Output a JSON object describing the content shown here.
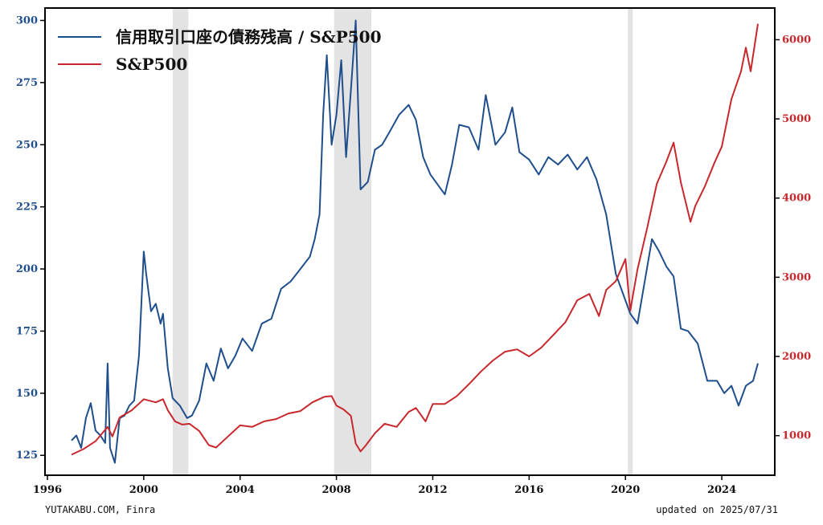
{
  "chart_data": {
    "type": "line",
    "title": "",
    "xlabel": "",
    "x_ticks": [
      "1996",
      "2000",
      "2004",
      "2008",
      "2012",
      "2016",
      "2020",
      "2024"
    ],
    "xlim": [
      1995.9,
      2026.2
    ],
    "y_left": {
      "ylim": [
        117,
        305
      ],
      "ticks": [
        125,
        150,
        175,
        200,
        225,
        250,
        275,
        300
      ],
      "color": "#1f4e8c"
    },
    "y_right": {
      "ylim": [
        500,
        6400
      ],
      "ticks": [
        1000,
        2000,
        3000,
        4000,
        5000,
        6000
      ],
      "color": "#c8282d"
    },
    "grid": false,
    "legend_position": "top-left",
    "recessions": [
      [
        2001.2,
        2001.85
      ],
      [
        2007.9,
        2009.45
      ],
      [
        2020.1,
        2020.3
      ]
    ],
    "series": [
      {
        "name": "信用取引口座の債務残高 / S&P500",
        "axis": "left",
        "color": "#1f4e8c",
        "x": [
          1997.0,
          1997.2,
          1997.4,
          1997.6,
          1997.8,
          1998.0,
          1998.2,
          1998.4,
          1998.5,
          1998.6,
          1998.8,
          1999.0,
          1999.2,
          1999.4,
          1999.6,
          1999.8,
          2000.0,
          2000.1,
          2000.3,
          2000.5,
          2000.7,
          2000.8,
          2001.0,
          2001.2,
          2001.5,
          2001.8,
          2002.0,
          2002.3,
          2002.6,
          2002.9,
          2003.2,
          2003.5,
          2003.8,
          2004.1,
          2004.5,
          2004.9,
          2005.3,
          2005.7,
          2006.1,
          2006.5,
          2006.9,
          2007.1,
          2007.3,
          2007.45,
          2007.6,
          2007.8,
          2008.0,
          2008.2,
          2008.4,
          2008.6,
          2008.8,
          2009.0,
          2009.3,
          2009.6,
          2009.9,
          2010.2,
          2010.6,
          2011.0,
          2011.3,
          2011.6,
          2011.9,
          2012.2,
          2012.5,
          2012.8,
          2013.1,
          2013.5,
          2013.9,
          2014.2,
          2014.6,
          2015.0,
          2015.3,
          2015.6,
          2016.0,
          2016.4,
          2016.8,
          2017.2,
          2017.6,
          2018.0,
          2018.4,
          2018.8,
          2019.2,
          2019.6,
          2019.9,
          2020.2,
          2020.5,
          2020.8,
          2021.1,
          2021.4,
          2021.7,
          2022.0,
          2022.3,
          2022.6,
          2023.0,
          2023.4,
          2023.8,
          2024.1,
          2024.4,
          2024.7,
          2025.0,
          2025.3,
          2025.5
        ],
        "values": [
          131,
          133,
          128,
          140,
          146,
          135,
          133,
          130,
          162,
          128,
          122,
          140,
          141,
          145,
          147,
          165,
          207,
          198,
          183,
          186,
          178,
          182,
          160,
          148,
          145,
          140,
          141,
          147,
          162,
          155,
          168,
          160,
          165,
          172,
          167,
          178,
          180,
          192,
          195,
          200,
          205,
          212,
          222,
          262,
          286,
          250,
          262,
          284,
          245,
          272,
          300,
          232,
          235,
          248,
          250,
          255,
          262,
          266,
          260,
          245,
          238,
          234,
          230,
          242,
          258,
          257,
          248,
          270,
          250,
          255,
          265,
          247,
          244,
          238,
          245,
          242,
          246,
          240,
          245,
          236,
          222,
          198,
          190,
          182,
          178,
          195,
          212,
          207,
          201,
          197,
          176,
          175,
          170,
          155,
          155,
          150,
          153,
          145,
          153,
          155,
          162
        ]
      },
      {
        "name": "S&P500",
        "axis": "right",
        "color": "#c8282d",
        "x": [
          1997.0,
          1997.5,
          1998.0,
          1998.5,
          1998.7,
          1999.0,
          1999.5,
          2000.0,
          2000.5,
          2000.8,
          2001.0,
          2001.3,
          2001.6,
          2001.9,
          2002.3,
          2002.7,
          2003.0,
          2003.5,
          2004.0,
          2004.5,
          2005.0,
          2005.5,
          2006.0,
          2006.5,
          2007.0,
          2007.5,
          2007.8,
          2008.0,
          2008.3,
          2008.6,
          2008.8,
          2009.0,
          2009.2,
          2009.6,
          2010.0,
          2010.5,
          2011.0,
          2011.3,
          2011.7,
          2012.0,
          2012.5,
          2013.0,
          2013.5,
          2014.0,
          2014.5,
          2015.0,
          2015.5,
          2016.0,
          2016.5,
          2017.0,
          2017.5,
          2018.0,
          2018.5,
          2018.9,
          2019.2,
          2019.6,
          2020.0,
          2020.2,
          2020.5,
          2020.9,
          2021.3,
          2021.7,
          2022.0,
          2022.3,
          2022.7,
          2022.9,
          2023.3,
          2023.7,
          2024.0,
          2024.4,
          2024.8,
          2025.0,
          2025.2,
          2025.5
        ],
        "values": [
          760,
          830,
          930,
          1110,
          990,
          1230,
          1320,
          1460,
          1420,
          1460,
          1320,
          1180,
          1140,
          1150,
          1060,
          880,
          850,
          990,
          1130,
          1110,
          1180,
          1210,
          1280,
          1310,
          1420,
          1490,
          1500,
          1380,
          1330,
          1250,
          900,
          800,
          870,
          1030,
          1150,
          1110,
          1300,
          1350,
          1180,
          1400,
          1400,
          1500,
          1650,
          1810,
          1950,
          2060,
          2090,
          2000,
          2110,
          2270,
          2430,
          2710,
          2790,
          2510,
          2840,
          2950,
          3230,
          2580,
          3100,
          3620,
          4180,
          4460,
          4700,
          4200,
          3700,
          3900,
          4150,
          4450,
          4650,
          5250,
          5600,
          5900,
          5600,
          6200
        ]
      }
    ],
    "footer_left": "YUTAKABU.COM, Finra",
    "footer_right": "updated on 2025/07/31"
  }
}
